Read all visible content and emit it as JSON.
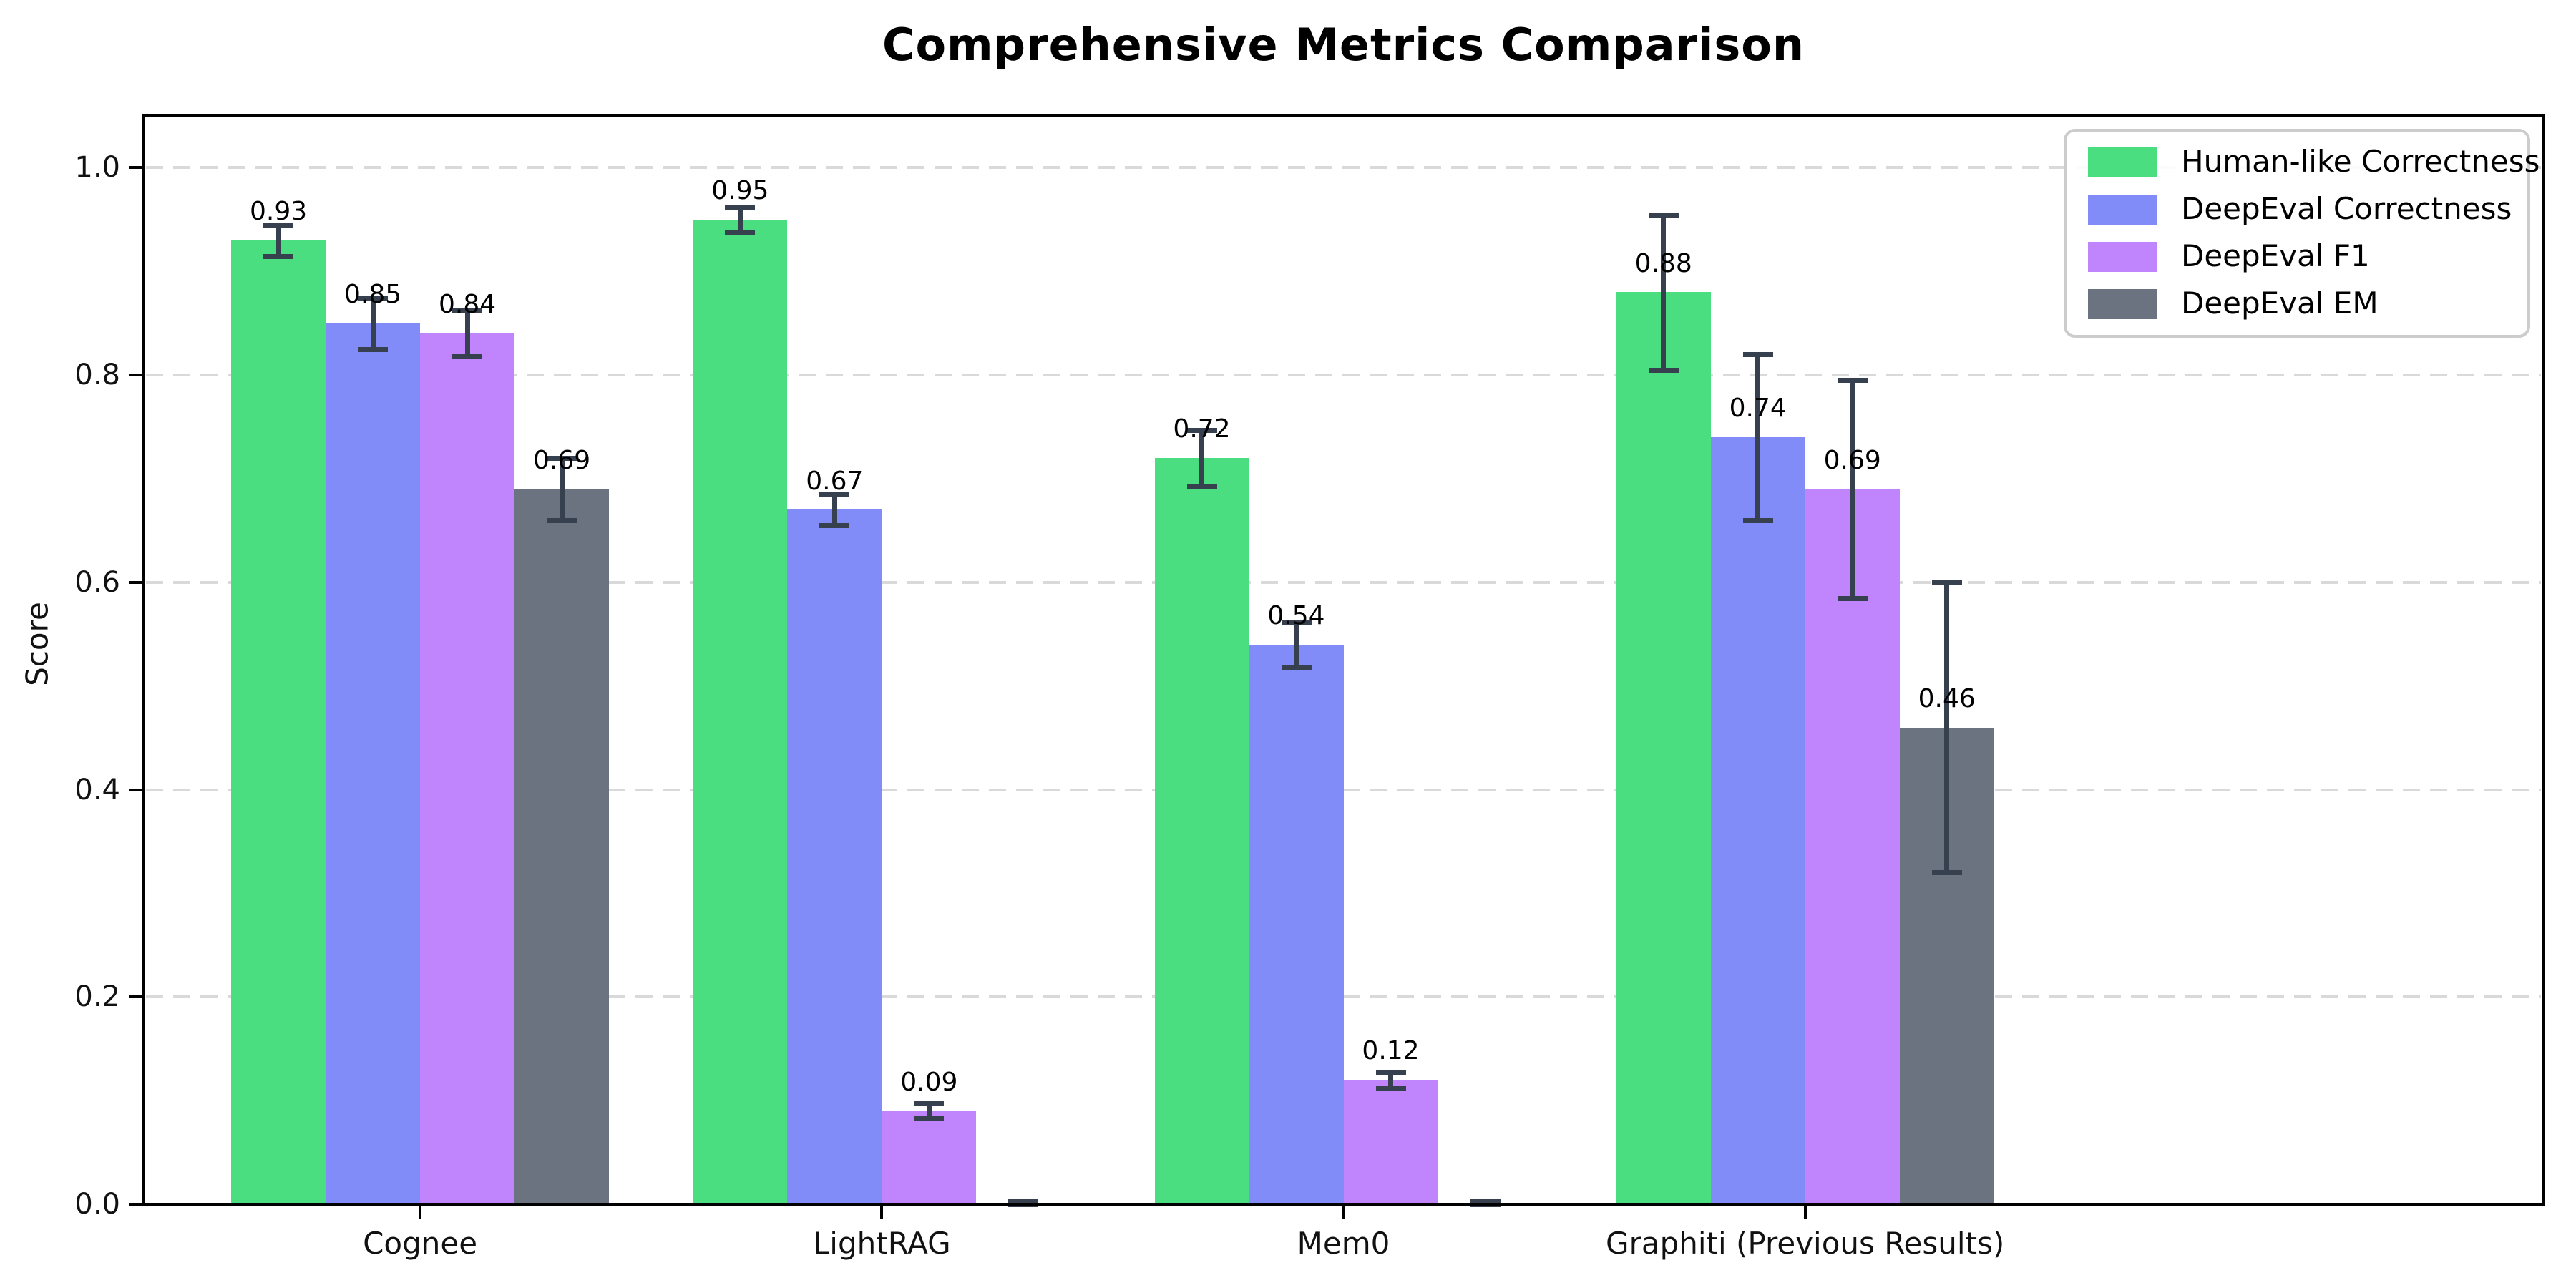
{
  "chart_data": {
    "type": "bar",
    "title": "Comprehensive Metrics Comparison",
    "ylabel": "Score",
    "xlabel": "",
    "categories": [
      "Cognee",
      "LightRAG",
      "Mem0",
      "Graphiti (Previous Results)"
    ],
    "series": [
      {
        "name": "Human-like Correctness",
        "color": "#4ade80",
        "values": [
          0.93,
          0.95,
          0.72,
          0.88
        ],
        "errors": [
          0.015,
          0.012,
          0.027,
          0.075
        ],
        "labels": [
          "0.93",
          "0.95",
          "0.72",
          "0.88"
        ]
      },
      {
        "name": "DeepEval Correctness",
        "color": "#818cf8",
        "values": [
          0.85,
          0.67,
          0.54,
          0.74
        ],
        "errors": [
          0.025,
          0.015,
          0.022,
          0.08
        ],
        "labels": [
          "0.85",
          "0.67",
          "0.54",
          "0.74"
        ]
      },
      {
        "name": "DeepEval F1",
        "color": "#c084fc",
        "values": [
          0.84,
          0.09,
          0.12,
          0.69
        ],
        "errors": [
          0.022,
          0.007,
          0.008,
          0.105
        ],
        "labels": [
          "0.84",
          "0.09",
          "0.12",
          "0.69"
        ]
      },
      {
        "name": "DeepEval EM",
        "color": "#6b7280",
        "values": [
          0.69,
          0.0,
          0.0,
          0.46
        ],
        "errors": [
          0.03,
          0.003,
          0.003,
          0.14
        ],
        "labels": [
          "0.69",
          null,
          null,
          "0.46"
        ]
      }
    ],
    "error_bar_color": "#37404f",
    "yticks": [
      "0.0",
      "0.2",
      "0.4",
      "0.6",
      "0.8",
      "1.0"
    ],
    "ytick_values": [
      0.0,
      0.2,
      0.4,
      0.6,
      0.8,
      1.0
    ],
    "ylim": [
      0,
      1.05
    ],
    "grid": true,
    "grid_style": "dashed",
    "legend_position": "upper right"
  }
}
